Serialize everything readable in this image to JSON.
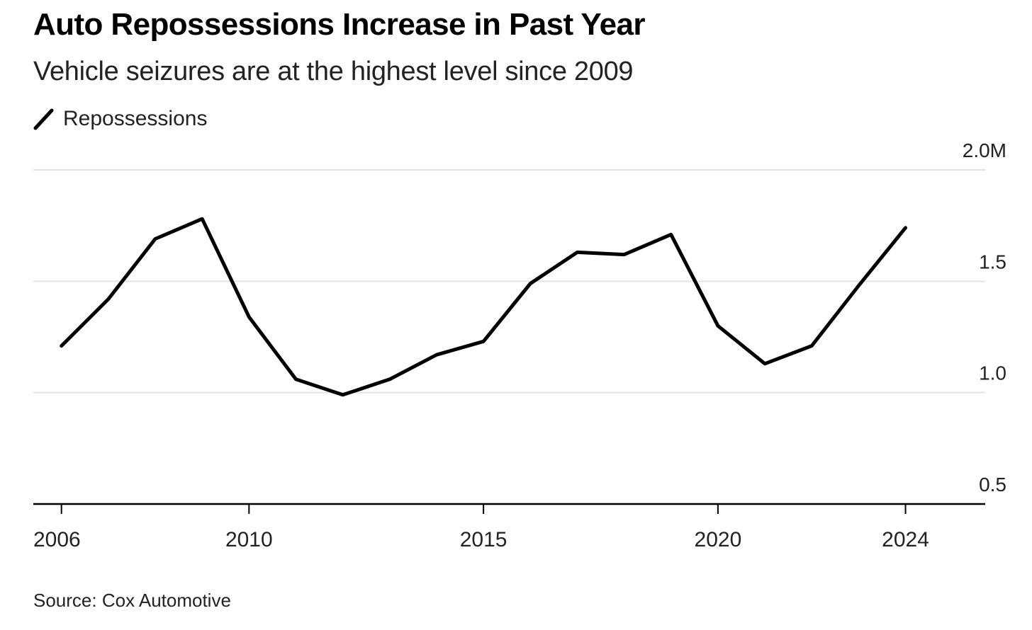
{
  "chart_data": {
    "type": "line",
    "title": "Auto Repossessions Increase in Past Year",
    "subtitle": "Vehicle seizures are at the highest level since 2009",
    "source": "Source: Cox Automotive",
    "xlabel": "",
    "ylabel": "",
    "x": [
      2006,
      2007,
      2008,
      2009,
      2010,
      2011,
      2012,
      2013,
      2014,
      2015,
      2016,
      2017,
      2018,
      2019,
      2020,
      2021,
      2022,
      2023,
      2024
    ],
    "series": [
      {
        "name": "Repossessions",
        "color": "#000000",
        "values": [
          1.21,
          1.42,
          1.69,
          1.78,
          1.34,
          1.06,
          0.99,
          1.06,
          1.17,
          1.23,
          1.49,
          1.63,
          1.62,
          1.71,
          1.3,
          1.13,
          1.21,
          1.48,
          1.74
        ]
      }
    ],
    "xlim": [
      2005.4,
      2025.7
    ],
    "ylim": [
      0.5,
      2.0
    ],
    "x_ticks": [
      {
        "value": 2006,
        "label": "2006"
      },
      {
        "value": 2010,
        "label": "2010"
      },
      {
        "value": 2015,
        "label": "2015"
      },
      {
        "value": 2020,
        "label": "2020"
      },
      {
        "value": 2024,
        "label": "2024"
      }
    ],
    "y_ticks": [
      {
        "value": 2.0,
        "label": "2.0M"
      },
      {
        "value": 1.5,
        "label": "1.5"
      },
      {
        "value": 1.0,
        "label": "1.0"
      },
      {
        "value": 0.5,
        "label": "0.5"
      }
    ],
    "y_axis_position": "right",
    "grid": true,
    "legend_position": "top-left",
    "colors": {
      "line": "#000000",
      "grid": "#e3e3e3",
      "axis": "#000000",
      "text": "#222222"
    }
  }
}
